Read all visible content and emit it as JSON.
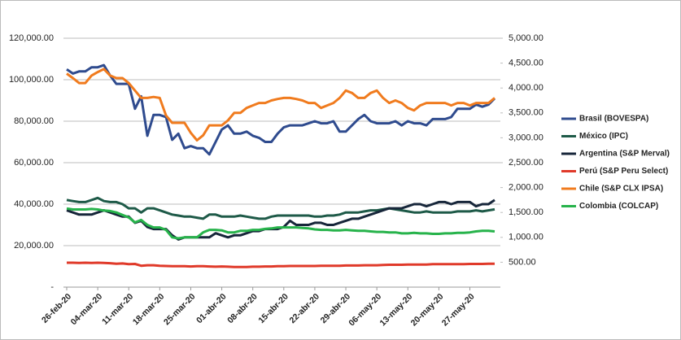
{
  "chart_data": {
    "type": "line",
    "categories": [
      "26-feb-20",
      null,
      null,
      null,
      null,
      "04-mar-20",
      null,
      null,
      null,
      null,
      "11-mar-20",
      null,
      null,
      null,
      null,
      "18-mar-20",
      null,
      null,
      null,
      null,
      "25-mar-20",
      null,
      null,
      null,
      null,
      "01-abr-20",
      null,
      null,
      null,
      null,
      "08-abr-20",
      null,
      null,
      null,
      null,
      "15-abr-20",
      null,
      null,
      null,
      null,
      "22-abr-20",
      null,
      null,
      null,
      null,
      "29-abr-20",
      null,
      null,
      null,
      null,
      "06-may-20",
      null,
      null,
      null,
      null,
      "13-may-20",
      null,
      null,
      null,
      null,
      "20-may-20",
      null,
      null,
      null,
      null,
      "27-may-20",
      null,
      null,
      null,
      null
    ],
    "ylim": [
      0,
      120000
    ],
    "yticks": [
      {
        "value": 0,
        "label": "-"
      },
      {
        "value": 20000,
        "label": "20,000.00"
      },
      {
        "value": 40000,
        "label": "40,000.00"
      },
      {
        "value": 60000,
        "label": "60,000.00"
      },
      {
        "value": 80000,
        "label": "80,000.00"
      },
      {
        "value": 100000,
        "label": "100,000.00"
      },
      {
        "value": 120000,
        "label": "120,000.00"
      }
    ],
    "y2lim": [
      0,
      5000
    ],
    "y2ticks": [
      {
        "value": 500,
        "label": "500.00"
      },
      {
        "value": 1000,
        "label": "1,000.00"
      },
      {
        "value": 1500,
        "label": "1,500.00"
      },
      {
        "value": 2000,
        "label": "2,000.00"
      },
      {
        "value": 2500,
        "label": "2,500.00"
      },
      {
        "value": 3000,
        "label": "3,000.00"
      },
      {
        "value": 3500,
        "label": "3,500.00"
      },
      {
        "value": 4000,
        "label": "4,000.00"
      },
      {
        "value": 4500,
        "label": "4,500.00"
      },
      {
        "value": 5000,
        "label": "5,000.00"
      }
    ],
    "grid": true,
    "legend": "right",
    "series": [
      {
        "name": "Brasil (BOVESPA)",
        "color": "#2f4b8e",
        "values": [
          105000,
          103000,
          104000,
          104000,
          106000,
          106000,
          107000,
          102000,
          98000,
          98000,
          98000,
          86000,
          92000,
          73000,
          83000,
          83000,
          82000,
          71000,
          74000,
          67000,
          68000,
          67000,
          67000,
          64000,
          70000,
          76000,
          78000,
          74000,
          74000,
          75000,
          73000,
          72000,
          70000,
          70000,
          74000,
          77000,
          78000,
          78000,
          78000,
          79000,
          80000,
          79000,
          79000,
          80000,
          75000,
          75000,
          78000,
          81000,
          83000,
          80000,
          79000,
          79000,
          79000,
          80000,
          78000,
          80000,
          79000,
          79000,
          78000,
          81000,
          81000,
          81000,
          82000,
          86000,
          86000,
          86000,
          88000,
          87000,
          88000,
          91000
        ]
      },
      {
        "name": "México (IPC)",
        "color": "#1e5a48",
        "values": [
          42000,
          41500,
          41000,
          41000,
          42000,
          43000,
          41500,
          41000,
          41000,
          40000,
          38000,
          38000,
          36000,
          38000,
          38000,
          37000,
          36000,
          35000,
          34500,
          34000,
          34000,
          33500,
          33000,
          35000,
          35000,
          34000,
          34000,
          34000,
          34500,
          34000,
          33500,
          33000,
          33000,
          34000,
          34500,
          34500,
          34500,
          34500,
          34500,
          34500,
          34000,
          34000,
          34500,
          34500,
          35000,
          36000,
          36000,
          36000,
          36500,
          37000,
          37000,
          37500,
          38000,
          37500,
          37000,
          36500,
          36000,
          36000,
          36500,
          36000,
          36000,
          36000,
          36000,
          36500,
          36500,
          36500,
          37000,
          36500,
          37000,
          37500
        ]
      },
      {
        "name": "Argentina (S&P Merval)",
        "color": "#17263a",
        "values": [
          37000,
          36000,
          35000,
          35000,
          35000,
          36000,
          37000,
          36000,
          35000,
          34000,
          34000,
          31000,
          32000,
          29000,
          28000,
          28000,
          28000,
          25000,
          23000,
          24000,
          24000,
          24000,
          24000,
          24000,
          26000,
          25000,
          24000,
          25000,
          25000,
          26000,
          27000,
          27000,
          28000,
          28000,
          28000,
          29000,
          32000,
          30000,
          30000,
          30000,
          31000,
          31000,
          30000,
          30000,
          31000,
          32000,
          33000,
          33000,
          34000,
          35000,
          36000,
          37000,
          38000,
          38000,
          38000,
          39000,
          40000,
          40000,
          39000,
          40000,
          41000,
          41000,
          40000,
          41000,
          41000,
          41000,
          39000,
          40000,
          40000,
          42000
        ]
      },
      {
        "name": "Perú (S&P Peru Select)",
        "color": "#e03a2a",
        "axis": "y2",
        "values": [
          490,
          490,
          485,
          490,
          485,
          490,
          485,
          480,
          470,
          475,
          460,
          465,
          430,
          440,
          440,
          430,
          425,
          420,
          420,
          420,
          415,
          420,
          420,
          415,
          410,
          415,
          410,
          405,
          405,
          405,
          410,
          410,
          415,
          415,
          420,
          420,
          425,
          425,
          425,
          425,
          425,
          430,
          430,
          430,
          430,
          435,
          435,
          435,
          440,
          440,
          440,
          445,
          450,
          450,
          450,
          455,
          455,
          455,
          455,
          460,
          460,
          460,
          460,
          460,
          460,
          465,
          465,
          465,
          470,
          470
        ]
      },
      {
        "name": "Chile (S&P CLX IPSA)",
        "color": "#f07b1e",
        "axis": "y2",
        "values": [
          4290,
          4200,
          4100,
          4100,
          4250,
          4320,
          4380,
          4250,
          4200,
          4200,
          4100,
          3950,
          3800,
          3800,
          3820,
          3800,
          3450,
          3300,
          3300,
          3300,
          3100,
          2950,
          3050,
          3250,
          3250,
          3250,
          3350,
          3500,
          3500,
          3600,
          3650,
          3700,
          3700,
          3750,
          3780,
          3800,
          3800,
          3780,
          3750,
          3700,
          3700,
          3600,
          3650,
          3700,
          3800,
          3950,
          3900,
          3800,
          3800,
          3900,
          3950,
          3800,
          3700,
          3750,
          3700,
          3600,
          3550,
          3650,
          3700,
          3700,
          3700,
          3700,
          3650,
          3700,
          3700,
          3650,
          3700,
          3700,
          3700,
          3800
        ]
      },
      {
        "name": "Colombia (COLCAP)",
        "color": "#27b34b",
        "axis": "y2",
        "values": [
          1580,
          1560,
          1560,
          1560,
          1570,
          1560,
          1540,
          1530,
          1500,
          1450,
          1400,
          1300,
          1350,
          1250,
          1200,
          1200,
          1150,
          1000,
          980,
          1000,
          1000,
          1000,
          1100,
          1150,
          1150,
          1140,
          1100,
          1100,
          1130,
          1130,
          1150,
          1150,
          1170,
          1180,
          1200,
          1200,
          1200,
          1200,
          1190,
          1180,
          1160,
          1150,
          1150,
          1140,
          1140,
          1150,
          1140,
          1130,
          1130,
          1120,
          1110,
          1110,
          1100,
          1100,
          1080,
          1080,
          1090,
          1080,
          1080,
          1070,
          1070,
          1080,
          1080,
          1090,
          1090,
          1100,
          1120,
          1130,
          1130,
          1120
        ]
      }
    ]
  }
}
